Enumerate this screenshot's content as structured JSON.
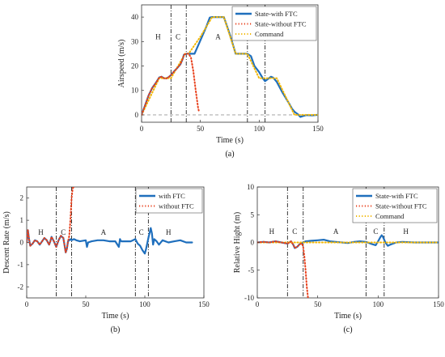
{
  "chart_data": [
    {
      "type": "line",
      "panel_label": "(a)",
      "xlabel": "Time (s)",
      "ylabel": "Airspeed (m/s)",
      "xlim": [
        0,
        150
      ],
      "ylim": [
        -3,
        45
      ],
      "xticks": [
        "0",
        "50",
        "100",
        "150"
      ],
      "yticks": [
        "0",
        "10",
        "20",
        "30",
        "40"
      ],
      "grid": false,
      "legend_position": "top-right",
      "colors": {
        "with": "#1f6fbd",
        "without": "#e8401c",
        "command": "#f2b705"
      },
      "series": [
        {
          "name": "State-with FTC",
          "style": "solid",
          "x": [
            0,
            3,
            6,
            9,
            12,
            15,
            17,
            19,
            21,
            23,
            25,
            28,
            30,
            33,
            35,
            36,
            38,
            40,
            45,
            50,
            55,
            58,
            60,
            65,
            70,
            75,
            80,
            83,
            85,
            88,
            90,
            93,
            96,
            100,
            103,
            105,
            107,
            110,
            112,
            115,
            120,
            125,
            128,
            130,
            133,
            135,
            137,
            140,
            145,
            150
          ],
          "y": [
            0,
            4,
            8,
            11,
            13,
            15.3,
            15.6,
            15,
            14.9,
            15.4,
            16.3,
            18,
            19,
            20.7,
            23,
            24.6,
            25,
            25,
            25,
            30.5,
            36,
            39.8,
            40,
            40,
            40,
            33,
            25,
            25,
            25,
            25,
            25,
            24,
            20,
            17.5,
            15,
            13.8,
            14.5,
            15.6,
            15.2,
            13.5,
            9,
            5,
            2.5,
            1.3,
            0.2,
            -0.8,
            -0.5,
            -0.1,
            -0.2,
            0
          ]
        },
        {
          "name": "State-without FTC",
          "style": "dotted",
          "x": [
            0,
            3,
            6,
            9,
            12,
            15,
            17,
            19,
            21,
            23,
            25,
            28,
            30,
            33,
            35,
            36,
            38,
            40,
            42,
            44,
            46,
            48,
            49
          ],
          "y": [
            0,
            4,
            8,
            11,
            13,
            15.3,
            15.6,
            15,
            14.9,
            15.4,
            16.3,
            18,
            19,
            20.7,
            23,
            24.6,
            25,
            25,
            23.5,
            18,
            10,
            3,
            1
          ]
        },
        {
          "name": "Command",
          "style": "dotted",
          "x": [
            0,
            15,
            25,
            37,
            40,
            50,
            60,
            70,
            80,
            90,
            100,
            115,
            130,
            150
          ],
          "y": [
            0,
            15,
            15,
            25,
            25,
            32,
            40,
            40,
            25,
            25,
            15,
            15,
            0,
            0
          ]
        }
      ],
      "reference_line_y": 0,
      "phase_boundaries_x": [
        25,
        38,
        90,
        105
      ],
      "phase_labels": [
        {
          "text": "H",
          "x": 14,
          "y": 32
        },
        {
          "text": "C",
          "x": 31,
          "y": 32
        },
        {
          "text": "A",
          "x": 65,
          "y": 32
        },
        {
          "text": "C",
          "x": 98,
          "y": 32
        },
        {
          "text": "H",
          "x": 122,
          "y": 32
        }
      ]
    },
    {
      "type": "line",
      "panel_label": "(b)",
      "xlabel": "Time (s)",
      "ylabel": "Descent Rate (m/s)",
      "xlim": [
        0,
        150
      ],
      "ylim": [
        -2.5,
        2.5
      ],
      "xticks": [
        "0",
        "50",
        "100",
        "150"
      ],
      "yticks": [
        "-2",
        "-1",
        "0",
        "1",
        "2"
      ],
      "grid": false,
      "legend_position": "top-right",
      "colors": {
        "with": "#1f6fbd",
        "without": "#e8401c"
      },
      "series": [
        {
          "name": "with FTC",
          "style": "solid",
          "x": [
            0,
            1,
            2,
            3,
            5,
            7,
            9,
            11,
            13,
            15,
            17,
            19,
            20,
            21,
            23,
            25,
            27,
            29,
            31,
            33,
            34,
            35,
            37,
            38,
            40,
            42,
            45,
            50,
            51,
            52,
            55,
            60,
            65,
            70,
            75,
            78,
            79,
            80,
            83,
            88,
            90,
            92,
            94,
            96,
            98,
            100,
            101,
            103,
            105,
            106,
            107,
            108,
            110,
            112,
            115,
            120,
            125,
            130,
            135,
            140
          ],
          "y": [
            0,
            0.55,
            0.15,
            -0.15,
            -0.05,
            0.1,
            0.05,
            -0.1,
            0.05,
            0.2,
            0.1,
            -0.1,
            0.05,
            0.25,
            0.05,
            -0.2,
            0.1,
            0.3,
            0.2,
            -0.45,
            -0.3,
            0.05,
            0.15,
            0.1,
            0.15,
            0.1,
            0.05,
            0.1,
            -0.2,
            0,
            0.05,
            0.1,
            0.1,
            0.05,
            0.05,
            -0.2,
            0.15,
            0.05,
            0.05,
            0.05,
            0.1,
            0.15,
            -0.05,
            -0.15,
            -0.35,
            -0.5,
            -0.3,
            0.2,
            0.65,
            0.4,
            -0.1,
            0.15,
            0.05,
            -0.1,
            0.1,
            0,
            0.05,
            0.1,
            0,
            0
          ]
        },
        {
          "name": "without FTC",
          "style": "dotted",
          "x": [
            0,
            1,
            2,
            3,
            5,
            7,
            9,
            11,
            13,
            15,
            17,
            19,
            20,
            21,
            23,
            25,
            27,
            29,
            31,
            33,
            34,
            35,
            36,
            37,
            38,
            39,
            40
          ],
          "y": [
            0,
            0.55,
            0.15,
            -0.15,
            -0.05,
            0.1,
            0.05,
            -0.1,
            0.05,
            0.2,
            0.1,
            -0.1,
            0.05,
            0.25,
            0.05,
            -0.2,
            0.1,
            0.3,
            0.2,
            -0.45,
            -0.3,
            0.05,
            0.3,
            1.0,
            2.0,
            2.45,
            2.5
          ]
        }
      ],
      "phase_boundaries_x": [
        25,
        38,
        92,
        103
      ],
      "phase_labels": [
        {
          "text": "H",
          "x": 12,
          "y": 0.45
        },
        {
          "text": "C",
          "x": 31,
          "y": 0.45
        },
        {
          "text": "A",
          "x": 65,
          "y": 0.45
        },
        {
          "text": "C",
          "x": 97,
          "y": 0.45
        },
        {
          "text": "H",
          "x": 120,
          "y": 0.45
        }
      ]
    },
    {
      "type": "line",
      "panel_label": "(c)",
      "xlabel": "Time (s)",
      "ylabel": "Relative Hight (m)",
      "xlim": [
        0,
        150
      ],
      "ylim": [
        -10,
        10
      ],
      "xticks": [
        "0",
        "50",
        "100",
        "150"
      ],
      "yticks": [
        "-10",
        "-5",
        "0",
        "5",
        "10"
      ],
      "grid": false,
      "legend_position": "top-right",
      "colors": {
        "with": "#1f6fbd",
        "without": "#e8401c",
        "command": "#f2b705"
      },
      "series": [
        {
          "name": "State-with FTC",
          "style": "solid",
          "x": [
            0,
            5,
            10,
            15,
            20,
            25,
            28,
            30,
            31,
            33,
            35,
            38,
            40,
            45,
            50,
            55,
            60,
            65,
            70,
            75,
            80,
            85,
            90,
            95,
            98,
            100,
            102,
            103,
            104,
            106,
            108,
            110,
            115,
            120,
            130,
            140,
            150
          ],
          "y": [
            0,
            0.1,
            0,
            0.2,
            0,
            -0.2,
            0.2,
            -0.5,
            -1.0,
            -0.8,
            -0.3,
            0,
            0.2,
            0.3,
            0.4,
            0.5,
            0.2,
            0.1,
            0,
            -0.1,
            0.1,
            0.2,
            0.1,
            -0.3,
            -0.5,
            0.2,
            1.0,
            1.3,
            1.0,
            0,
            -0.6,
            -0.4,
            0,
            0.1,
            0,
            0,
            0
          ]
        },
        {
          "name": "State-without FTC",
          "style": "dotted",
          "x": [
            0,
            5,
            10,
            15,
            20,
            25,
            28,
            30,
            31,
            33,
            35,
            37,
            38,
            39,
            40,
            41,
            42
          ],
          "y": [
            0,
            0.1,
            0,
            0.2,
            0,
            -0.2,
            0.2,
            -0.5,
            -1.0,
            -0.8,
            -0.3,
            -0.2,
            -0.8,
            -2.5,
            -5,
            -8,
            -10
          ]
        },
        {
          "name": "Command",
          "style": "dotted",
          "x": [
            0,
            150
          ],
          "y": [
            0,
            0
          ]
        }
      ],
      "phase_boundaries_x": [
        25,
        38,
        90,
        105
      ],
      "phase_labels": [
        {
          "text": "H",
          "x": 12,
          "y": 2
        },
        {
          "text": "C",
          "x": 31,
          "y": 2
        },
        {
          "text": "A",
          "x": 65,
          "y": 2
        },
        {
          "text": "C",
          "x": 98,
          "y": 2
        },
        {
          "text": "H",
          "x": 123,
          "y": 2
        }
      ]
    }
  ]
}
